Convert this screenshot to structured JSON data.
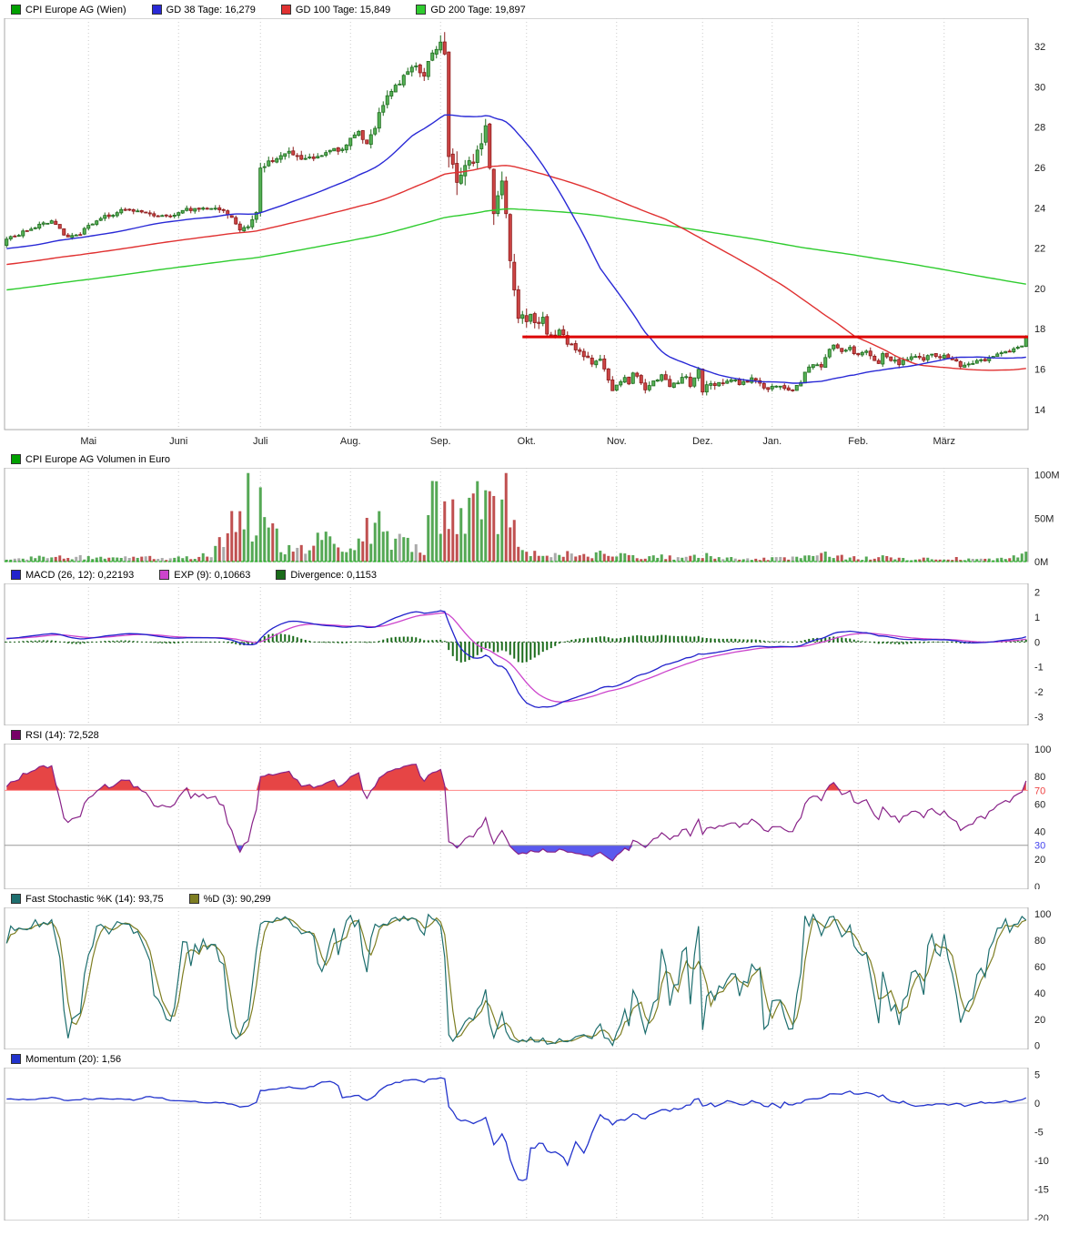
{
  "title": "CPI Europe AG (Wien)",
  "panels": {
    "main": {
      "legend": [
        {
          "color": "#00A000",
          "label": "CPI Europe AG (Wien)"
        },
        {
          "color": "#2929D6",
          "label": "GD 38 Tage: 16,279"
        },
        {
          "color": "#E03131",
          "label": "GD 100 Tage: 15,849"
        },
        {
          "color": "#2FCC2F",
          "label": "GD 200 Tage: 19,897"
        }
      ]
    },
    "volume": {
      "legend": [
        {
          "color": "#00A000",
          "label": "CPI Europe AG Volumen in Euro"
        }
      ]
    },
    "macd": {
      "legend": [
        {
          "color": "#2222CC",
          "label": "MACD (26, 12): 0,22193"
        },
        {
          "color": "#CC44CC",
          "label": "EXP (9): 0,10663"
        },
        {
          "color": "#1A6B1A",
          "label": "Divergence: 0,1153"
        }
      ]
    },
    "rsi": {
      "legend": [
        {
          "color": "#770066",
          "label": "RSI (14): 72,528"
        }
      ]
    },
    "stoch": {
      "legend": [
        {
          "color": "#1D6E6E",
          "label": "Fast Stochastic %K (14): 93,75"
        },
        {
          "color": "#7E7E22",
          "label": "%D (3): 90,299"
        }
      ]
    },
    "momentum": {
      "legend": [
        {
          "color": "#2233CC",
          "label": "Momentum (20): 1,56"
        }
      ]
    }
  },
  "chart_data": {
    "type": "candlestick+indicators",
    "title": "CPI Europe AG (Wien)",
    "days": 250,
    "seed": 7,
    "months": [
      [
        "Mai",
        20
      ],
      [
        "Juni",
        42
      ],
      [
        "Juli",
        62
      ],
      [
        "Aug.",
        84
      ],
      [
        "Sep.",
        106
      ],
      [
        "Okt.",
        127
      ],
      [
        "Nov.",
        149
      ],
      [
        "Dez.",
        170
      ],
      [
        "Jan.",
        187
      ],
      [
        "Feb.",
        208
      ],
      [
        "März",
        229
      ]
    ],
    "pre_series": {
      "days": 200,
      "start": 17.4,
      "end": 22.4
    },
    "close_anchors": [
      [
        0,
        22.4
      ],
      [
        3,
        22.7
      ],
      [
        6,
        23.0
      ],
      [
        9,
        23.2
      ],
      [
        11,
        23.3
      ],
      [
        13,
        22.9
      ],
      [
        15,
        22.5
      ],
      [
        17,
        22.6
      ],
      [
        19,
        22.9
      ],
      [
        21,
        23.2
      ],
      [
        23,
        23.5
      ],
      [
        26,
        23.7
      ],
      [
        29,
        23.9
      ],
      [
        32,
        23.8
      ],
      [
        35,
        23.7
      ],
      [
        38,
        23.6
      ],
      [
        41,
        23.7
      ],
      [
        44,
        23.9
      ],
      [
        47,
        23.9
      ],
      [
        50,
        24.0
      ],
      [
        53,
        23.9
      ],
      [
        55,
        23.5
      ],
      [
        57,
        23.0
      ],
      [
        59,
        23.2
      ],
      [
        61,
        23.7
      ],
      [
        62,
        25.9
      ],
      [
        64,
        26.3
      ],
      [
        67,
        26.6
      ],
      [
        70,
        26.7
      ],
      [
        73,
        26.4
      ],
      [
        76,
        26.6
      ],
      [
        79,
        26.8
      ],
      [
        82,
        26.9
      ],
      [
        84,
        27.4
      ],
      [
        86,
        27.8
      ],
      [
        88,
        27.2
      ],
      [
        90,
        28.0
      ],
      [
        92,
        29.2
      ],
      [
        94,
        29.8
      ],
      [
        97,
        30.5
      ],
      [
        100,
        31.1
      ],
      [
        102,
        30.6
      ],
      [
        104,
        31.6
      ],
      [
        106,
        32.1
      ],
      [
        107,
        31.6
      ],
      [
        108,
        26.4
      ],
      [
        110,
        25.6
      ],
      [
        112,
        26.1
      ],
      [
        114,
        26.3
      ],
      [
        116,
        27.4
      ],
      [
        117,
        27.8
      ],
      [
        118,
        26.3
      ],
      [
        119,
        23.5
      ],
      [
        120,
        24.8
      ],
      [
        121,
        25.6
      ],
      [
        122,
        23.8
      ],
      [
        123,
        21.6
      ],
      [
        124,
        19.7
      ],
      [
        125,
        18.3
      ],
      [
        126,
        18.8
      ],
      [
        127,
        18.3
      ],
      [
        128,
        18.6
      ],
      [
        130,
        18.3
      ],
      [
        131,
        18.6
      ],
      [
        132,
        17.9
      ],
      [
        133,
        17.6
      ],
      [
        135,
        17.9
      ],
      [
        137,
        17.3
      ],
      [
        139,
        16.9
      ],
      [
        141,
        16.6
      ],
      [
        143,
        16.3
      ],
      [
        145,
        16.5
      ],
      [
        146,
        15.9
      ],
      [
        148,
        14.9
      ],
      [
        149,
        15.3
      ],
      [
        151,
        15.6
      ],
      [
        152,
        15.2
      ],
      [
        153,
        15.9
      ],
      [
        155,
        15.3
      ],
      [
        156,
        14.9
      ],
      [
        158,
        15.4
      ],
      [
        160,
        15.7
      ],
      [
        162,
        15.2
      ],
      [
        164,
        15.4
      ],
      [
        166,
        15.6
      ],
      [
        167,
        15.2
      ],
      [
        169,
        15.9
      ],
      [
        170,
        14.8
      ],
      [
        171,
        15.1
      ],
      [
        173,
        15.3
      ],
      [
        175,
        15.2
      ],
      [
        177,
        15.4
      ],
      [
        180,
        15.3
      ],
      [
        182,
        15.5
      ],
      [
        184,
        15.2
      ],
      [
        186,
        15.0
      ],
      [
        188,
        15.2
      ],
      [
        190,
        15.1
      ],
      [
        192,
        14.9
      ],
      [
        194,
        15.4
      ],
      [
        195,
        15.9
      ],
      [
        197,
        16.3
      ],
      [
        199,
        16.2
      ],
      [
        201,
        16.9
      ],
      [
        202,
        17.1
      ],
      [
        204,
        16.9
      ],
      [
        206,
        17.0
      ],
      [
        208,
        16.7
      ],
      [
        210,
        16.8
      ],
      [
        212,
        16.4
      ],
      [
        213,
        16.2
      ],
      [
        214,
        16.7
      ],
      [
        216,
        16.5
      ],
      [
        218,
        16.3
      ],
      [
        220,
        16.5
      ],
      [
        222,
        16.6
      ],
      [
        224,
        16.5
      ],
      [
        226,
        16.7
      ],
      [
        229,
        16.6
      ],
      [
        231,
        16.5
      ],
      [
        233,
        16.2
      ],
      [
        235,
        16.3
      ],
      [
        238,
        16.4
      ],
      [
        240,
        16.5
      ],
      [
        242,
        16.7
      ],
      [
        244,
        16.8
      ],
      [
        246,
        17.0
      ],
      [
        248,
        17.15
      ],
      [
        249,
        17.55
      ]
    ],
    "range_anchors": [
      [
        0,
        0.18
      ],
      [
        50,
        0.18
      ],
      [
        58,
        0.3
      ],
      [
        62,
        0.35
      ],
      [
        80,
        0.25
      ],
      [
        90,
        0.35
      ],
      [
        105,
        0.4
      ],
      [
        108,
        0.85
      ],
      [
        118,
        0.75
      ],
      [
        126,
        0.5
      ],
      [
        135,
        0.3
      ],
      [
        150,
        0.25
      ],
      [
        171,
        0.3
      ],
      [
        190,
        0.2
      ],
      [
        205,
        0.25
      ],
      [
        249,
        0.18
      ]
    ],
    "volume_anchors": [
      [
        0,
        4
      ],
      [
        20,
        5
      ],
      [
        40,
        4
      ],
      [
        50,
        8
      ],
      [
        52,
        20
      ],
      [
        54,
        35
      ],
      [
        56,
        55
      ],
      [
        57,
        88
      ],
      [
        58,
        62
      ],
      [
        59,
        90
      ],
      [
        60,
        45
      ],
      [
        62,
        70
      ],
      [
        64,
        38
      ],
      [
        66,
        25
      ],
      [
        70,
        12
      ],
      [
        75,
        18
      ],
      [
        78,
        30
      ],
      [
        80,
        14
      ],
      [
        84,
        10
      ],
      [
        86,
        28
      ],
      [
        88,
        35
      ],
      [
        90,
        48
      ],
      [
        92,
        30
      ],
      [
        94,
        22
      ],
      [
        96,
        30
      ],
      [
        98,
        18
      ],
      [
        100,
        25
      ],
      [
        102,
        12
      ],
      [
        104,
        85
      ],
      [
        106,
        40
      ],
      [
        107,
        65
      ],
      [
        108,
        70
      ],
      [
        110,
        45
      ],
      [
        112,
        55
      ],
      [
        114,
        60
      ],
      [
        115,
        88
      ],
      [
        116,
        55
      ],
      [
        118,
        65
      ],
      [
        120,
        50
      ],
      [
        122,
        92
      ],
      [
        123,
        60
      ],
      [
        124,
        40
      ],
      [
        126,
        20
      ],
      [
        128,
        12
      ],
      [
        130,
        10
      ],
      [
        133,
        8
      ],
      [
        136,
        10
      ],
      [
        140,
        6
      ],
      [
        144,
        8
      ],
      [
        148,
        10
      ],
      [
        152,
        6
      ],
      [
        156,
        5
      ],
      [
        160,
        6
      ],
      [
        165,
        4
      ],
      [
        170,
        8
      ],
      [
        175,
        4
      ],
      [
        180,
        3
      ],
      [
        185,
        3
      ],
      [
        190,
        4
      ],
      [
        195,
        6
      ],
      [
        200,
        8
      ],
      [
        205,
        5
      ],
      [
        210,
        4
      ],
      [
        215,
        5
      ],
      [
        220,
        3
      ],
      [
        225,
        3
      ],
      [
        230,
        4
      ],
      [
        235,
        3
      ],
      [
        240,
        3
      ],
      [
        245,
        4
      ],
      [
        249,
        8
      ]
    ],
    "indicators": {
      "sma": [
        38,
        100,
        200
      ],
      "macd": [
        26,
        12,
        9
      ],
      "rsi": 14,
      "stoch_k": 14,
      "stoch_d": 3,
      "momentum": 20
    },
    "price_line": {
      "value": 17.6,
      "from_day": 126,
      "color": "#DD0000"
    },
    "axes": {
      "main": {
        "ylim": [
          13.0,
          33.4
        ],
        "ticks": [
          32,
          30,
          28,
          26,
          24,
          22,
          20,
          18,
          16,
          14
        ]
      },
      "volume": {
        "ylim": [
          0,
          108
        ],
        "ticks": [
          {
            "v": 100,
            "label": "100M"
          },
          {
            "v": 50,
            "label": "50M"
          },
          {
            "v": 0,
            "label": "0M"
          }
        ]
      },
      "macd": {
        "ylim": [
          -3.35,
          2.35
        ],
        "ticks": [
          2,
          1,
          0,
          -1,
          -2,
          -3
        ]
      },
      "rsi": {
        "ylim": [
          -2,
          104
        ],
        "ticks": [
          100,
          80,
          {
            "v": 70,
            "label": "70",
            "color": "#EE4444"
          },
          60,
          40,
          {
            "v": 30,
            "label": "30",
            "color": "#4444EE"
          },
          20,
          0
        ],
        "overbought": 70,
        "oversold": 30
      },
      "stoch": {
        "ylim": [
          -3,
          105
        ],
        "ticks": [
          100,
          80,
          60,
          40,
          20,
          0
        ]
      },
      "momentum": {
        "ylim": [
          -20.5,
          6.2
        ],
        "ticks": [
          5,
          0,
          -5,
          -10,
          -15,
          -20
        ]
      }
    },
    "colors": {
      "up_fill": "#55B055",
      "up_stroke": "#1C6B1C",
      "down_fill": "#CC4444",
      "down_stroke": "#8B1A1A",
      "ma38": "#2929D6",
      "ma100": "#E03131",
      "ma200": "#2FCC2F",
      "vol_up": "#55A855",
      "vol_down": "#C05050",
      "vol_neutral": "#AAAAAA",
      "macd": "#2222CC",
      "exp": "#CC44CC",
      "divergence": "#1A6B1A",
      "rsi": "#882288",
      "rsi_over_fill": "#E64545",
      "rsi_under_fill": "#5A5AEE",
      "stoch_k": "#1D6E6E",
      "stoch_d": "#7E7E22",
      "momentum": "#2233CC",
      "grid": "#CCCCCC",
      "border": "#AAAAAA",
      "text": "#222222"
    }
  }
}
